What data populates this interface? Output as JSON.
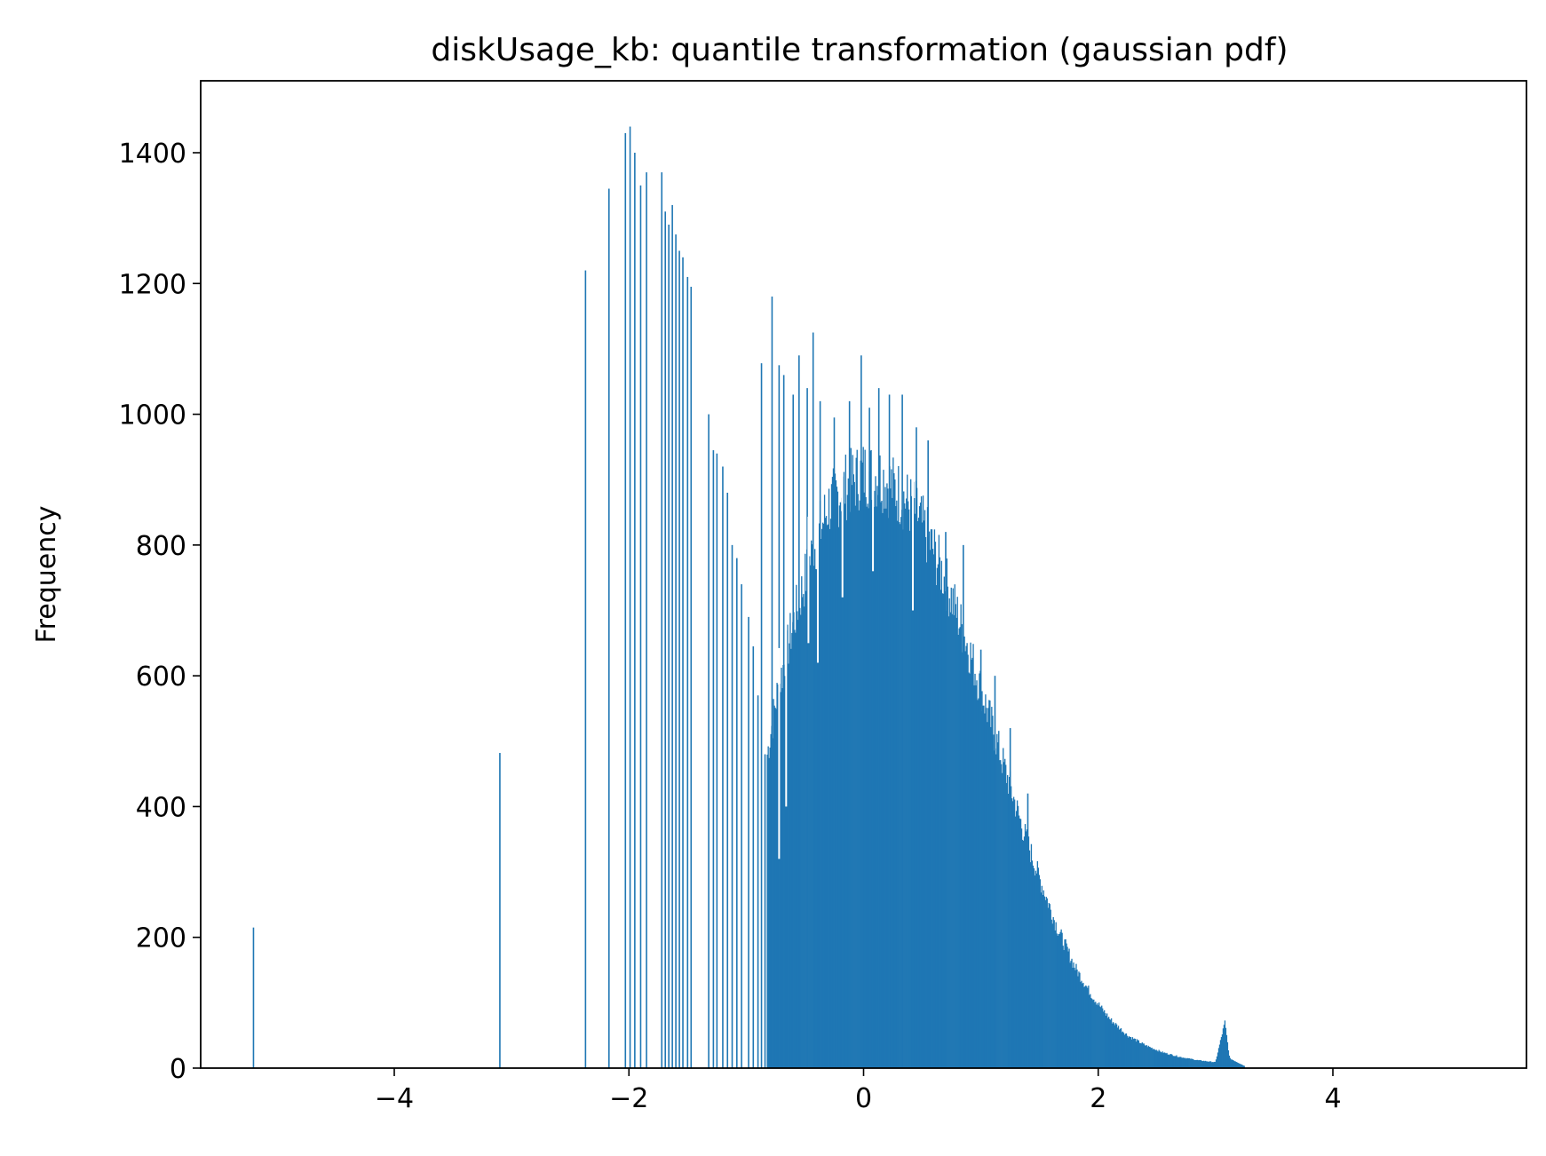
{
  "chart_data": {
    "type": "bar",
    "title": "diskUsage_kb: quantile transformation (gaussian pdf)",
    "xlabel": "",
    "ylabel": "Frequency",
    "xlim": [
      -5.65,
      5.65
    ],
    "ylim": [
      0,
      1510
    ],
    "x_ticks": [
      -4,
      -2,
      0,
      2,
      4
    ],
    "x_tick_labels": [
      "−4",
      "−2",
      "0",
      "2",
      "4"
    ],
    "y_ticks": [
      0,
      200,
      400,
      600,
      800,
      1000,
      1200,
      1400
    ],
    "y_tick_labels": [
      "0",
      "200",
      "400",
      "600",
      "800",
      "1000",
      "1200",
      "1400"
    ],
    "bar_color": "#1f77b4",
    "grid": false,
    "isolated_bars": [
      {
        "x": -5.2,
        "y": 215
      },
      {
        "x": -3.1,
        "y": 482
      },
      {
        "x": -2.37,
        "y": 1220
      },
      {
        "x": -2.17,
        "y": 1345
      },
      {
        "x": -2.03,
        "y": 1430
      },
      {
        "x": -1.99,
        "y": 1440
      },
      {
        "x": -1.95,
        "y": 1400
      },
      {
        "x": -1.9,
        "y": 1350
      },
      {
        "x": -1.85,
        "y": 1370
      },
      {
        "x": -1.72,
        "y": 1370
      },
      {
        "x": -1.69,
        "y": 1310
      },
      {
        "x": -1.66,
        "y": 1290
      },
      {
        "x": -1.63,
        "y": 1320
      },
      {
        "x": -1.6,
        "y": 1275
      },
      {
        "x": -1.57,
        "y": 1250
      },
      {
        "x": -1.54,
        "y": 1240
      },
      {
        "x": -1.5,
        "y": 1210
      },
      {
        "x": -1.47,
        "y": 1195
      },
      {
        "x": -1.32,
        "y": 1000
      },
      {
        "x": -1.28,
        "y": 945
      },
      {
        "x": -1.25,
        "y": 940
      },
      {
        "x": -1.2,
        "y": 920
      },
      {
        "x": -1.16,
        "y": 880
      },
      {
        "x": -1.12,
        "y": 800
      },
      {
        "x": -1.08,
        "y": 780
      },
      {
        "x": -1.04,
        "y": 740
      },
      {
        "x": -0.98,
        "y": 690
      },
      {
        "x": -0.94,
        "y": 645
      },
      {
        "x": -0.9,
        "y": 570
      },
      {
        "x": -0.87,
        "y": 1078
      },
      {
        "x": -0.84,
        "y": 480
      }
    ],
    "dense_series": {
      "x_start": -0.82,
      "x_end": 3.25,
      "bin_width": 0.0075,
      "envelope": [
        {
          "x": -0.82,
          "y": 480
        },
        {
          "x": -0.75,
          "y": 560
        },
        {
          "x": -0.6,
          "y": 680
        },
        {
          "x": -0.45,
          "y": 780
        },
        {
          "x": -0.3,
          "y": 860
        },
        {
          "x": -0.15,
          "y": 890
        },
        {
          "x": 0.0,
          "y": 910
        },
        {
          "x": 0.15,
          "y": 905
        },
        {
          "x": 0.3,
          "y": 880
        },
        {
          "x": 0.45,
          "y": 850
        },
        {
          "x": 0.6,
          "y": 790
        },
        {
          "x": 0.75,
          "y": 720
        },
        {
          "x": 0.9,
          "y": 640
        },
        {
          "x": 1.05,
          "y": 550
        },
        {
          "x": 1.2,
          "y": 460
        },
        {
          "x": 1.35,
          "y": 370
        },
        {
          "x": 1.5,
          "y": 290
        },
        {
          "x": 1.65,
          "y": 215
        },
        {
          "x": 1.8,
          "y": 155
        },
        {
          "x": 1.95,
          "y": 110
        },
        {
          "x": 2.1,
          "y": 75
        },
        {
          "x": 2.25,
          "y": 50
        },
        {
          "x": 2.4,
          "y": 35
        },
        {
          "x": 2.55,
          "y": 24
        },
        {
          "x": 2.7,
          "y": 17
        },
        {
          "x": 2.85,
          "y": 12
        },
        {
          "x": 3.0,
          "y": 9
        },
        {
          "x": 3.08,
          "y": 70
        },
        {
          "x": 3.12,
          "y": 15
        },
        {
          "x": 3.25,
          "y": 3
        }
      ],
      "spikes": [
        {
          "x": -0.78,
          "y": 1180
        },
        {
          "x": -0.72,
          "y": 1075
        },
        {
          "x": -0.68,
          "y": 1060
        },
        {
          "x": -0.6,
          "y": 1030
        },
        {
          "x": -0.55,
          "y": 1090
        },
        {
          "x": -0.48,
          "y": 1040
        },
        {
          "x": -0.43,
          "y": 1125
        },
        {
          "x": -0.37,
          "y": 1020
        },
        {
          "x": -0.25,
          "y": 995
        },
        {
          "x": -0.12,
          "y": 1020
        },
        {
          "x": -0.02,
          "y": 1090
        },
        {
          "x": 0.05,
          "y": 1010
        },
        {
          "x": 0.13,
          "y": 1040
        },
        {
          "x": 0.22,
          "y": 1030
        },
        {
          "x": 0.33,
          "y": 1030
        },
        {
          "x": 0.45,
          "y": 980
        },
        {
          "x": 0.55,
          "y": 960
        },
        {
          "x": 0.7,
          "y": 820
        },
        {
          "x": 0.85,
          "y": 800
        },
        {
          "x": 1.0,
          "y": 640
        },
        {
          "x": 1.12,
          "y": 600
        },
        {
          "x": 1.25,
          "y": 520
        },
        {
          "x": 1.4,
          "y": 420
        }
      ],
      "dips": [
        {
          "x": -0.72,
          "y": 320
        },
        {
          "x": -0.66,
          "y": 400
        },
        {
          "x": -0.47,
          "y": 650
        },
        {
          "x": -0.39,
          "y": 620
        },
        {
          "x": -0.18,
          "y": 720
        },
        {
          "x": 0.08,
          "y": 760
        },
        {
          "x": 0.42,
          "y": 700
        }
      ]
    }
  }
}
